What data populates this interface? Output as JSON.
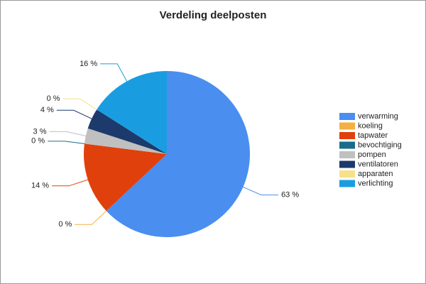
{
  "chart_data": {
    "type": "pie",
    "title": "Verdeling deelposten",
    "categories": [
      "verwarming",
      "koeling",
      "tapwater",
      "bevochtiging",
      "pompen",
      "ventilatoren",
      "apparaten",
      "verlichting"
    ],
    "values": [
      63,
      0,
      14,
      0,
      3,
      4,
      0,
      16
    ],
    "value_labels": [
      "63 %",
      "0 %",
      "14 %",
      "0 %",
      "3 %",
      "4 %",
      "0 %",
      "16 %"
    ],
    "colors": [
      "#4a8ef0",
      "#f5b041",
      "#e0400c",
      "#1a6d8a",
      "#c0c0c0",
      "#1c3a6b",
      "#f7e08a",
      "#1a9de0"
    ],
    "legend": "right"
  }
}
